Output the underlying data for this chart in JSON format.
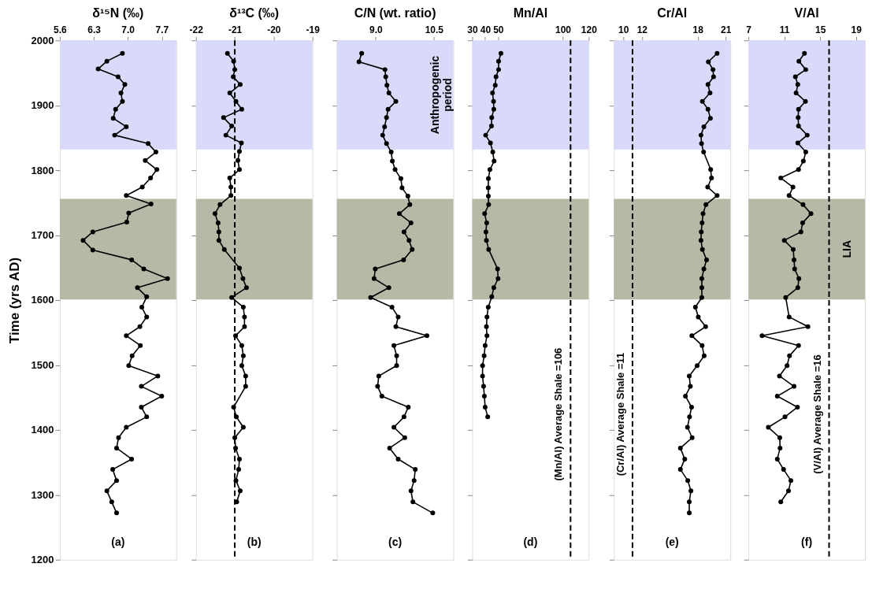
{
  "chart_data": [
    {
      "type": "line",
      "title": "δ¹⁵N (‰)",
      "ylabel": "Time (yrs AD)",
      "xlim": [
        5.6,
        8.0
      ],
      "xticks": [
        5.6,
        6.3,
        {
          "value": 7,
          "label": "7.0"
        },
        7.7
      ],
      "ylim": [
        1200,
        2000
      ],
      "yticks": [
        1200,
        1300,
        1400,
        1500,
        1600,
        1700,
        1800,
        1900,
        2000
      ],
      "grid": false,
      "marker": "circle",
      "line_style": "solid",
      "bands": [
        {
          "axis": "y",
          "from": 1832,
          "to": 2000,
          "color": "#d9d9fa"
        },
        {
          "axis": "y",
          "from": 1601,
          "to": 1756,
          "color": "#b7b8a5"
        }
      ],
      "series": [
        {
          "color": "#000000",
          "x": [
            6.89,
            6.57,
            6.39,
            6.8,
            6.94,
            6.86,
            6.89,
            6.75,
            6.7,
            6.97,
            6.73,
            7.42,
            7.58,
            7.36,
            7.6,
            7.47,
            7.3,
            6.97,
            7.48,
            7.02,
            6.98,
            6.28,
            6.08,
            6.28,
            7.08,
            7.33,
            7.82,
            7.2,
            7.39,
            7.29,
            7.39,
            7.25,
            6.97,
            7.26,
            7.09,
            7.02,
            7.62,
            7.28,
            7.7,
            7.28,
            7.39,
            6.97,
            6.81,
            6.77,
            7.08,
            6.69,
            6.77,
            6.57,
            6.67,
            6.77
          ],
          "values": [
            1980,
            1968,
            1956,
            1944,
            1932,
            1919,
            1906,
            1894,
            1880,
            1867,
            1854,
            1841,
            1828,
            1815,
            1801,
            1788,
            1774,
            1761,
            1748,
            1734,
            1720,
            1705,
            1692,
            1677,
            1662,
            1648,
            1633,
            1619,
            1605,
            1589,
            1574,
            1559,
            1545,
            1530,
            1514,
            1499,
            1483,
            1467,
            1452,
            1435,
            1420,
            1404,
            1388,
            1372,
            1355,
            1339,
            1322,
            1306,
            1289,
            1272
          ]
        }
      ],
      "annotations": [
        "(a)"
      ]
    },
    {
      "type": "line",
      "title": "δ¹³C (‰)",
      "xlim": [
        -22,
        -19
      ],
      "xticks": [
        -22,
        -21,
        -20,
        -19
      ],
      "ylim": [
        1200,
        2000
      ],
      "yticks": [
        1200,
        1300,
        1400,
        1500,
        1600,
        1700,
        1800,
        1900,
        2000
      ],
      "tick_labels": "x",
      "grid": false,
      "marker": "circle",
      "line_style": "solid",
      "bands": [
        {
          "axis": "y",
          "from": 1832,
          "to": 2000,
          "color": "#d9d9fa"
        },
        {
          "axis": "y",
          "from": 1601,
          "to": 1756,
          "color": "#b7b8a5"
        }
      ],
      "ref_lines": [
        {
          "axis": "x",
          "value": -21,
          "line_style": "dashed"
        }
      ],
      "series": [
        {
          "color": "#000000",
          "x": [
            -21.19,
            -21.03,
            -21.0,
            -21.04,
            -20.86,
            -21.13,
            -20.97,
            -20.82,
            -21.29,
            -21.08,
            -21.23,
            -20.83,
            -20.88,
            -20.92,
            -20.88,
            -21.13,
            -21.1,
            -21.1,
            -21.38,
            -21.51,
            -21.43,
            -21.41,
            -21.41,
            -21.27,
            -20.88,
            -20.79,
            -20.7,
            -21.08,
            -20.78,
            -20.75,
            -20.75,
            -20.98,
            -20.82,
            -20.78,
            -20.82,
            -20.72,
            -20.72,
            -21.03,
            -20.96,
            -20.78,
            -21.0,
            -20.98,
            -20.88,
            -20.9,
            -20.97,
            -20.86,
            -20.95
          ],
          "values": [
            1980,
            1968,
            1955,
            1944,
            1932,
            1919,
            1906,
            1894,
            1881,
            1868,
            1854,
            1842,
            1829,
            1815,
            1801,
            1788,
            1774,
            1761,
            1747,
            1733,
            1719,
            1705,
            1692,
            1678,
            1649,
            1633,
            1619,
            1604,
            1589,
            1574,
            1559,
            1545,
            1530,
            1514,
            1499,
            1483,
            1467,
            1435,
            1420,
            1404,
            1388,
            1372,
            1355,
            1339,
            1322,
            1306,
            1289
          ]
        }
      ],
      "annotations": [
        "(b)"
      ]
    },
    {
      "type": "line",
      "title": "C/N (wt. ratio)",
      "xlim": [
        8.0,
        11.0
      ],
      "xticks": [
        {
          "value": 9,
          "label": "9.0"
        },
        10.5
      ],
      "ylim": [
        1200,
        2000
      ],
      "yticks": [
        1200,
        1300,
        1400,
        1500,
        1600,
        1700,
        1800,
        1900,
        2000
      ],
      "tick_labels": "x",
      "grid": false,
      "marker": "circle",
      "line_style": "solid",
      "bands": [
        {
          "axis": "y",
          "from": 1832,
          "to": 2000,
          "color": "#d9d9fa",
          "label": "Anthropogenic period"
        },
        {
          "axis": "y",
          "from": 1601,
          "to": 1756,
          "color": "#b7b8a5"
        }
      ],
      "series": [
        {
          "color": "#000000",
          "x": [
            8.64,
            8.57,
            9.24,
            9.26,
            9.29,
            9.34,
            9.52,
            9.32,
            9.28,
            9.23,
            9.18,
            9.28,
            9.4,
            9.43,
            9.5,
            9.65,
            9.68,
            9.83,
            9.88,
            9.61,
            9.91,
            9.73,
            9.86,
            9.94,
            9.72,
            8.99,
            8.96,
            9.34,
            8.87,
            9.42,
            9.58,
            9.52,
            10.32,
            9.47,
            9.54,
            9.54,
            9.08,
            9.05,
            9.16,
            9.84,
            9.73,
            9.47,
            9.75,
            9.36,
            9.58,
            10.02,
            9.99,
            9.91,
            9.96,
            10.47
          ],
          "values": [
            1980,
            1967,
            1955,
            1944,
            1931,
            1919,
            1906,
            1894,
            1881,
            1867,
            1854,
            1841,
            1828,
            1814,
            1801,
            1787,
            1773,
            1760,
            1747,
            1733,
            1719,
            1705,
            1692,
            1678,
            1662,
            1648,
            1633,
            1619,
            1604,
            1589,
            1574,
            1559,
            1545,
            1530,
            1514,
            1499,
            1483,
            1467,
            1452,
            1435,
            1420,
            1404,
            1388,
            1372,
            1355,
            1339,
            1322,
            1306,
            1289,
            1272
          ]
        }
      ],
      "annotations": [
        "(c)"
      ]
    },
    {
      "type": "line",
      "title": "Mn/Al",
      "xlim": [
        30,
        120
      ],
      "xticks": [
        30,
        40,
        50,
        100,
        120
      ],
      "ylim": [
        1200,
        2000
      ],
      "yticks": [
        1200,
        1300,
        1400,
        1500,
        1600,
        1700,
        1800,
        1900,
        2000
      ],
      "tick_labels": "x",
      "grid": false,
      "marker": "circle",
      "line_style": "solid",
      "bands": [
        {
          "axis": "y",
          "from": 1832,
          "to": 2000,
          "color": "#d9d9fa"
        },
        {
          "axis": "y",
          "from": 1601,
          "to": 1756,
          "color": "#b7b8a5"
        }
      ],
      "ref_lines": [
        {
          "axis": "x",
          "value": 106,
          "label": "(Mn/Al) Average Shale =106",
          "line_style": "dashed"
        }
      ],
      "series": [
        {
          "color": "#000000",
          "x": [
            52.2,
            50.4,
            50.4,
            48.4,
            47.8,
            45.7,
            46.5,
            46.7,
            45.1,
            44.9,
            40.4,
            44.1,
            45.9,
            46.9,
            43.7,
            42.5,
            42.4,
            42.5,
            42.7,
            39.6,
            41.2,
            40.6,
            41.0,
            42.7,
            49.6,
            50.0,
            46.7,
            45.1,
            42.4,
            41.4,
            41.0,
            41.4,
            40.0,
            39.2,
            38.0,
            38.0,
            38.8,
            39.4,
            40.0,
            42.0
          ],
          "values": [
            1980,
            1968,
            1955,
            1944,
            1931,
            1919,
            1906,
            1894,
            1881,
            1868,
            1854,
            1842,
            1828,
            1814,
            1801,
            1787,
            1773,
            1760,
            1747,
            1733,
            1719,
            1705,
            1692,
            1678,
            1648,
            1633,
            1619,
            1605,
            1589,
            1574,
            1559,
            1545,
            1530,
            1514,
            1499,
            1483,
            1467,
            1452,
            1435,
            1420
          ]
        }
      ],
      "annotations": [
        "(d)"
      ]
    },
    {
      "type": "line",
      "title": "Cr/Al",
      "xlim": [
        9,
        21.5
      ],
      "xticks": [
        10,
        12,
        18,
        21
      ],
      "ylim": [
        1200,
        2000
      ],
      "yticks": [
        1200,
        1300,
        1400,
        1500,
        1600,
        1700,
        1800,
        1900,
        2000
      ],
      "tick_labels": "x",
      "grid": false,
      "marker": "circle",
      "line_style": "solid",
      "bands": [
        {
          "axis": "y",
          "from": 1832,
          "to": 2000,
          "color": "#d9d9fa"
        },
        {
          "axis": "y",
          "from": 1601,
          "to": 1756,
          "color": "#b7b8a5"
        }
      ],
      "ref_lines": [
        {
          "axis": "x",
          "value": 11,
          "label": "(Cr/Al) Average Shale =11",
          "line_style": "dashed"
        }
      ],
      "series": [
        {
          "color": "#000000",
          "x": [
            20.08,
            19.14,
            19.64,
            19.7,
            19.1,
            19.32,
            18.5,
            19.1,
            19.36,
            18.66,
            18.35,
            18.41,
            18.63,
            19.39,
            19.48,
            19.07,
            20.08,
            18.88,
            18.57,
            18.47,
            18.38,
            18.35,
            18.5,
            18.95,
            18.66,
            18.44,
            18.44,
            18.44,
            17.75,
            18.06,
            18.85,
            17.37,
            18.47,
            18.69,
            17.94,
            17.09,
            17.21,
            16.68,
            17.34,
            17.12,
            16.9,
            17.4,
            16.14,
            16.61,
            16.14,
            16.93,
            17.27,
            17.09,
            17.09
          ],
          "values": [
            1980,
            1967,
            1955,
            1944,
            1932,
            1919,
            1906,
            1894,
            1880,
            1867,
            1854,
            1841,
            1828,
            1801,
            1788,
            1774,
            1761,
            1747,
            1733,
            1719,
            1705,
            1692,
            1678,
            1662,
            1648,
            1633,
            1619,
            1604,
            1589,
            1574,
            1559,
            1545,
            1530,
            1514,
            1499,
            1483,
            1467,
            1452,
            1435,
            1420,
            1404,
            1388,
            1372,
            1355,
            1339,
            1322,
            1306,
            1289,
            1272
          ]
        }
      ],
      "annotations": [
        "(e)"
      ]
    },
    {
      "type": "line",
      "title": "V/Al",
      "xlim": [
        7,
        20
      ],
      "xticks": [
        7,
        11,
        15,
        19
      ],
      "ylim": [
        1200,
        2000
      ],
      "yticks": [
        1200,
        1300,
        1400,
        1500,
        1600,
        1700,
        1800,
        1900,
        2000
      ],
      "tick_labels": "x",
      "grid": false,
      "marker": "circle",
      "line_style": "solid",
      "bands": [
        {
          "axis": "y",
          "from": 1832,
          "to": 2000,
          "color": "#d9d9fa"
        },
        {
          "axis": "y",
          "from": 1601,
          "to": 1756,
          "color": "#b7b8a5",
          "label": "LIA"
        }
      ],
      "ref_lines": [
        {
          "axis": "x",
          "value": 16,
          "label": "(V/Al) Average Shale =16",
          "line_style": "dashed"
        }
      ],
      "series": [
        {
          "color": "#000000",
          "x": [
            13.25,
            12.63,
            13.4,
            12.24,
            12.51,
            12.32,
            13.36,
            12.59,
            12.55,
            12.59,
            13.56,
            12.51,
            13.4,
            13.13,
            12.59,
            10.61,
            11.97,
            11.54,
            13.09,
            13.98,
            13.05,
            12.86,
            11.0,
            12.0,
            12.09,
            12.16,
            12.63,
            12.51,
            11.16,
            11.54,
            13.64,
            8.52,
            12.59,
            11.58,
            11.31,
            10.46,
            12.09,
            10.22,
            12.47,
            11.08,
            9.22,
            10.5,
            10.53,
            10.22,
            10.92,
            11.74,
            11.47,
            10.61
          ],
          "values": [
            1980,
            1968,
            1955,
            1944,
            1932,
            1919,
            1906,
            1894,
            1881,
            1868,
            1854,
            1842,
            1828,
            1814,
            1801,
            1788,
            1774,
            1761,
            1747,
            1733,
            1719,
            1705,
            1692,
            1678,
            1662,
            1648,
            1633,
            1619,
            1604,
            1574,
            1559,
            1545,
            1530,
            1514,
            1499,
            1483,
            1467,
            1452,
            1435,
            1420,
            1404,
            1388,
            1372,
            1355,
            1339,
            1322,
            1306,
            1289
          ]
        }
      ],
      "annotations": [
        "(f)"
      ]
    }
  ]
}
